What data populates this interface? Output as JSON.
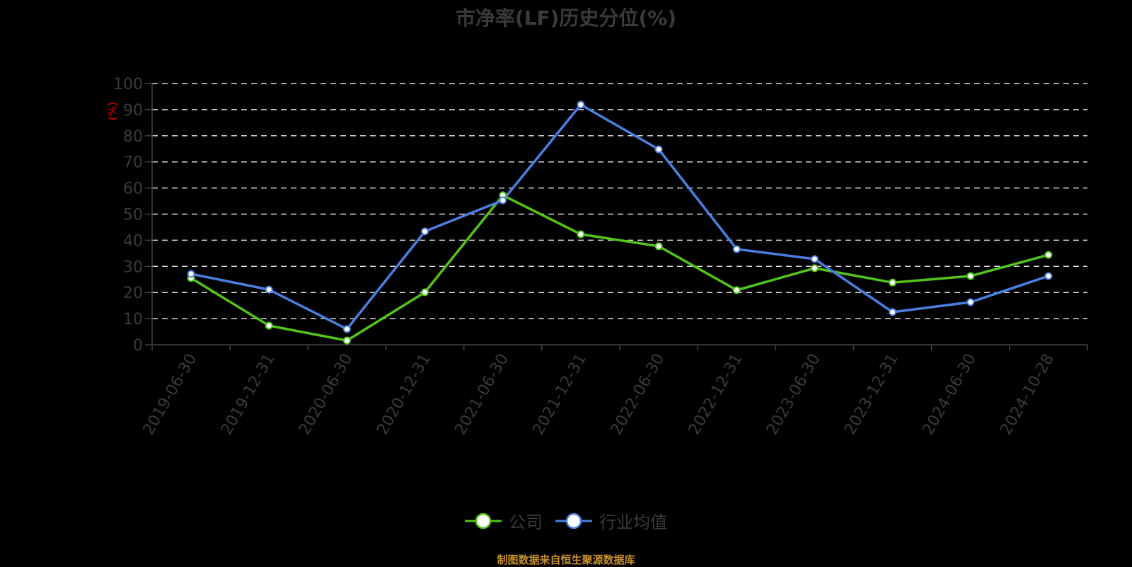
{
  "title": "市净率(LF)历史分位(%)",
  "y_unit_label": "(%)",
  "legend": {
    "company": "公司",
    "industry": "行业均值"
  },
  "source_note": "制图数据来自恒生聚源数据库",
  "colors": {
    "company": "#52c41a",
    "industry": "#4a7fe0",
    "grid": "#d9d9d9",
    "axis": "#444444",
    "text": "#3a3a3a",
    "unit": "#ff0000",
    "source": "#c8902a"
  },
  "chart_data": {
    "type": "line",
    "title": "市净率(LF)历史分位(%)",
    "xlabel": "",
    "ylabel": "(%)",
    "ylim": [
      0,
      100
    ],
    "yticks": [
      0,
      10,
      20,
      30,
      40,
      50,
      60,
      70,
      80,
      90,
      100
    ],
    "grid": true,
    "legend_position": "bottom",
    "categories": [
      "2019-06-30",
      "2019-12-31",
      "2020-06-30",
      "2020-12-31",
      "2021-06-30",
      "2021-12-31",
      "2022-06-30",
      "2022-12-31",
      "2023-06-30",
      "2023-12-31",
      "2024-06-30",
      "2024-10-28"
    ],
    "series": [
      {
        "name": "公司",
        "values": [
          25.5,
          7.3,
          1.6,
          20.1,
          57.2,
          42.3,
          37.7,
          20.9,
          29.3,
          23.8,
          26.3,
          34.4
        ]
      },
      {
        "name": "行业均值",
        "values": [
          27.1,
          21.1,
          6.0,
          43.4,
          55.3,
          91.9,
          74.8,
          36.6,
          32.8,
          12.5,
          16.3,
          26.3
        ]
      }
    ]
  }
}
